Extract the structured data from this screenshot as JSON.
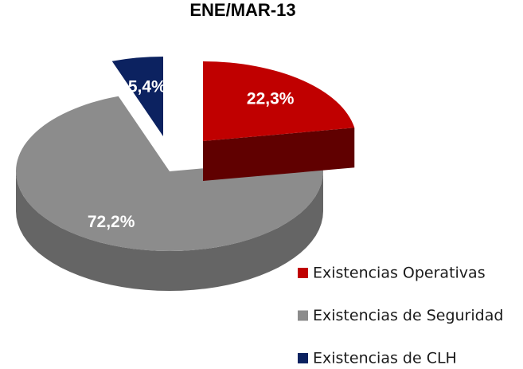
{
  "chart_data": {
    "type": "pie",
    "title": "ENE/MAR-13",
    "categories": [
      "Existencias Operativas",
      "Existencias de Seguridad",
      "Existencias de CLH"
    ],
    "values": [
      22.3,
      72.2,
      5.4
    ],
    "value_labels": [
      "22,3%",
      "72,2%",
      "5,4%"
    ],
    "colors": [
      "#c00000",
      "#8c8c8c",
      "#0c2260"
    ],
    "legend": "right"
  }
}
